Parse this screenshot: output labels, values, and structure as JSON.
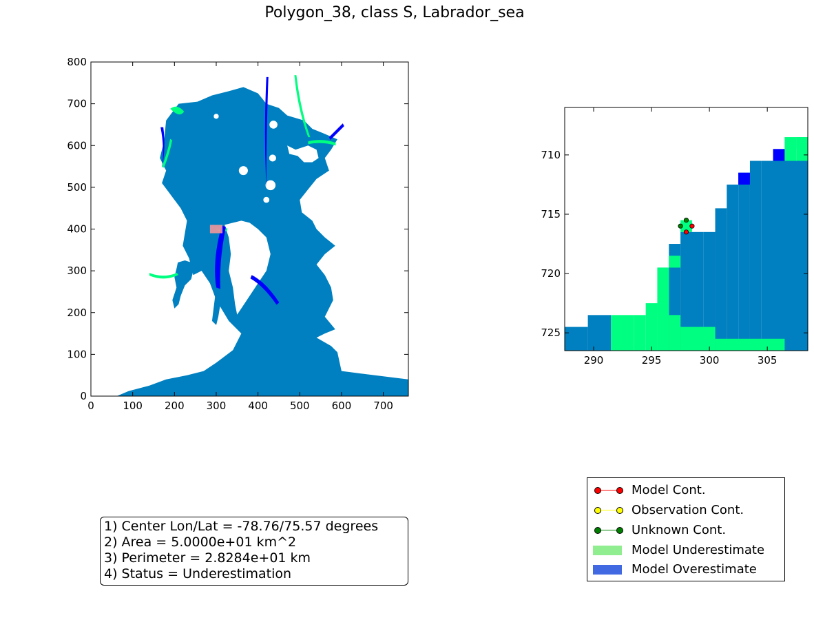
{
  "title": "Polygon_38, class S, Labrador_sea",
  "colors": {
    "ocean": "#0080c0",
    "underestimate": "#00ff80",
    "overestimate": "#0000ff",
    "land": "#ffffff",
    "highlight": "#ff9999"
  },
  "chart_data": [
    {
      "type": "heatmap",
      "name": "overview-map",
      "xlim": [
        0,
        760
      ],
      "ylim": [
        0,
        800
      ],
      "xticks": [
        "0",
        "100",
        "200",
        "300",
        "400",
        "500",
        "600",
        "700"
      ],
      "yticks": [
        "0",
        "100",
        "200",
        "300",
        "400",
        "500",
        "600",
        "700",
        "800"
      ],
      "highlight_region": {
        "x": [
          285,
          315
        ],
        "y": [
          390,
          410
        ]
      }
    },
    {
      "type": "heatmap",
      "name": "zoom-map",
      "xlim": [
        287.5,
        308.5
      ],
      "ylim": [
        726.5,
        706
      ],
      "xticks": [
        "290",
        "295",
        "300",
        "305"
      ],
      "yticks": [
        "710",
        "715",
        "720",
        "725"
      ],
      "contour_points": [
        {
          "x": 297.5,
          "y": 716,
          "type": "unknown"
        },
        {
          "x": 298,
          "y": 715.5,
          "type": "unknown"
        },
        {
          "x": 298.5,
          "y": 716,
          "type": "model"
        },
        {
          "x": 298,
          "y": 716.5,
          "type": "model"
        }
      ]
    }
  ],
  "info": {
    "lines": [
      "1) Center Lon/Lat = -78.76/75.57 degrees",
      "2) Area = 5.0000e+01 km^2",
      "3) Perimeter = 2.8284e+01 km",
      "4) Status = Underestimation"
    ]
  },
  "legend": {
    "items": [
      {
        "label": "Model Cont.",
        "kind": "line",
        "color": "#ff0000"
      },
      {
        "label": "Observation Cont.",
        "kind": "line",
        "color": "#ffff00"
      },
      {
        "label": "Unknown Cont.",
        "kind": "line",
        "color": "#008000"
      },
      {
        "label": "Model Underestimate",
        "kind": "patch",
        "color": "#90ee90"
      },
      {
        "label": "Model Overestimate",
        "kind": "patch",
        "color": "#4169e1"
      }
    ]
  }
}
